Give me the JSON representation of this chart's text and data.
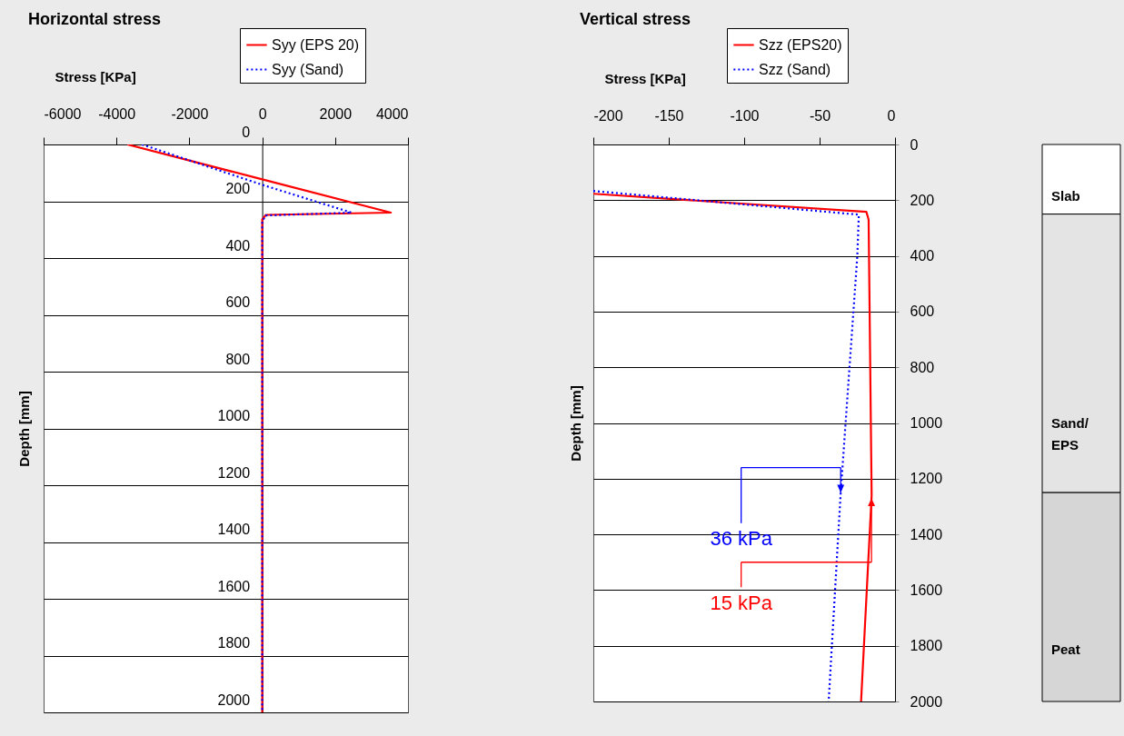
{
  "chart_data": [
    {
      "type": "line",
      "title": "Horizontal stress",
      "xlabel": "Stress [KPa]",
      "ylabel": "Depth [mm]",
      "xlim": [
        -6000,
        4000
      ],
      "xticks": [
        -6000,
        -4000,
        -2000,
        0,
        2000,
        4000
      ],
      "ylim": [
        2000,
        0
      ],
      "yticks": [
        0,
        200,
        400,
        600,
        800,
        1000,
        1200,
        1400,
        1600,
        1800,
        2000
      ],
      "grid": "y",
      "legend": "top right",
      "series": [
        {
          "name": "Syy (EPS 20)",
          "color": "#ff0000",
          "line_style": "solid",
          "x": [
            -3700,
            0,
            3530,
            100,
            0,
            0
          ],
          "values": [
            0,
            123,
            240,
            248,
            264,
            2000
          ]
        },
        {
          "name": "Syy (Sand)",
          "color": "#0000ff",
          "line_style": "dotted",
          "x": [
            -3300,
            0,
            2450,
            100,
            0,
            0
          ],
          "values": [
            0,
            142,
            240,
            250,
            270,
            2000
          ]
        }
      ]
    },
    {
      "type": "line",
      "title": "Vertical stress",
      "xlabel": "Stress [KPa]",
      "ylabel": "Depth [mm]",
      "xlim": [
        -200,
        0
      ],
      "xticks": [
        -200,
        -150,
        -100,
        -50,
        0
      ],
      "ylim": [
        2000,
        0
      ],
      "yticks": [
        0,
        200,
        400,
        600,
        800,
        1000,
        1200,
        1400,
        1600,
        1800,
        2000
      ],
      "grid": "y",
      "legend": "top right",
      "series": [
        {
          "name": "Szz (EPS20)",
          "color": "#ff0000",
          "line_style": "solid",
          "x": [
            -200,
            -19,
            -17.5,
            -15.5,
            -22.5
          ],
          "values": [
            177,
            242,
            270,
            1260,
            2000
          ]
        },
        {
          "name": "Szz (Sand)",
          "color": "#0000ff",
          "line_style": "dotted",
          "x": [
            -200,
            -24,
            -25,
            -36,
            -44
          ],
          "values": [
            167,
            252,
            400,
            1250,
            2000
          ]
        }
      ],
      "annotations": [
        "36 kPa",
        "15 kPa"
      ]
    },
    {
      "type": "bar",
      "stacked": true,
      "categories": [
        null
      ],
      "ylim": [
        2000,
        0
      ],
      "tick_labels": false,
      "series": [
        {
          "name": "Slab",
          "color": "#ffffff",
          "values": [
            250
          ]
        },
        {
          "name": "Sand/\nEPS",
          "color": "#e4e4e4",
          "values": [
            1000
          ]
        },
        {
          "name": "Peat",
          "color": "#d6d6d6",
          "values": [
            750
          ]
        }
      ]
    }
  ]
}
